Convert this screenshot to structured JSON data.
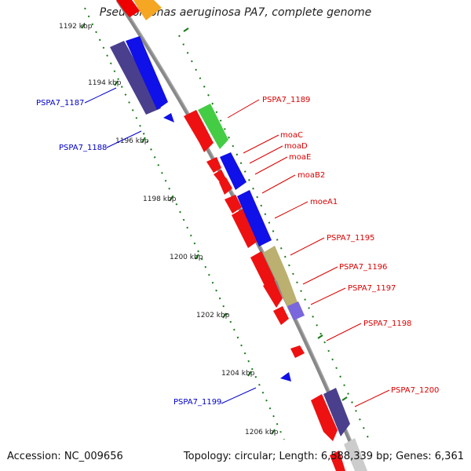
{
  "title": "Pseudomonas aeruginosa PA7, complete genome",
  "footer": {
    "accession": "Accession: NC_009656",
    "stats": "Topology: circular; Length: 6,588,339 bp; Genes: 6,361"
  },
  "colors": {
    "backbone": "#888888",
    "tick_dots": "#1a7a1a",
    "forward_label": "#dd0000",
    "reverse_label": "#0000cc"
  },
  "ruler_labels": [
    "1192 kbp",
    "1194 kbp",
    "1196 kbp",
    "1198 kbp",
    "1200 kbp",
    "1202 kbp",
    "1204 kbp",
    "1206 kbp"
  ],
  "forward_genes": [
    "PSPA7_1189",
    "moaC",
    "moaD",
    "moaE",
    "moaB2",
    "moeA1",
    "PSPA7_1195",
    "PSPA7_1196",
    "PSPA7_1197",
    "PSPA7_1198",
    "PSPA7_1200"
  ],
  "reverse_genes": [
    "PSPA7_1187",
    "PSPA7_1188",
    "PSPA7_1199"
  ]
}
